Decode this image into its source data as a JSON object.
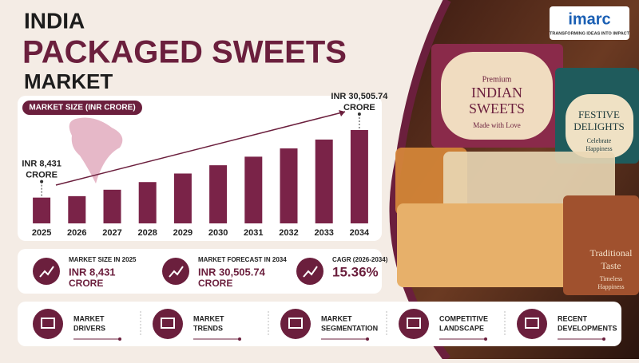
{
  "header": {
    "line1": "INDIA",
    "line2": "PACKAGED SWEETS",
    "line3": "MARKET"
  },
  "logo": {
    "name": "imarc",
    "tagline": "TRANSFORMING IDEAS INTO IMPACT"
  },
  "chart_data": {
    "type": "bar",
    "label": "MARKET SIZE (INR CRORE)",
    "categories": [
      "2025",
      "2026",
      "2027",
      "2028",
      "2029",
      "2030",
      "2031",
      "2032",
      "2033",
      "2034"
    ],
    "values": [
      8431,
      8900,
      11000,
      13500,
      16300,
      19000,
      21800,
      24500,
      27400,
      30505.74
    ],
    "value_labels": [
      "INR 8,431",
      null,
      null,
      null,
      null,
      null,
      null,
      null,
      null,
      "INR 30,505.74"
    ],
    "value_unit": "CRORE",
    "color": "#7a2348"
  },
  "stats": [
    {
      "label": "MARKET SIZE IN 2025",
      "value": "INR 8,431",
      "unit": "CRORE"
    },
    {
      "label": "MARKET FORECAST IN 2034",
      "value": "INR 30,505.74",
      "unit": "CRORE"
    },
    {
      "label": "CAGR (2026-2034)",
      "value": "15.36%"
    }
  ],
  "nav": [
    [
      "MARKET",
      "DRIVERS"
    ],
    [
      "MARKET",
      "TRENDS"
    ],
    [
      "MARKET",
      "SEGMENTATION"
    ],
    [
      "COMPETITIVE",
      "LANDSCAPE"
    ],
    [
      "RECENT",
      "DEVELOPMENTS"
    ]
  ],
  "image_text": {
    "box1": [
      "Premium",
      "INDIAN",
      "SWEETS",
      "Made with Love"
    ],
    "box2": [
      "FESTIVE",
      "DELIGHTS",
      "Celebrate",
      "Happiness"
    ],
    "box3": [
      "Traditional",
      "Taste",
      "Timeless",
      "Happiness"
    ]
  }
}
